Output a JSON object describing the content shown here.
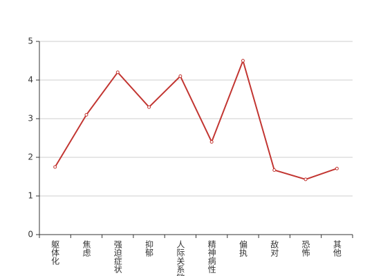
{
  "chart_data": {
    "type": "line",
    "categories": [
      "躯体化",
      "焦虑",
      "强迫症状",
      "抑郁",
      "人际关系敏感",
      "精神病性",
      "偏执",
      "敌对",
      "恐怖",
      "其他"
    ],
    "series": [
      {
        "color": "#c23531",
        "values": [
          1.75,
          3.1,
          4.2,
          3.3,
          4.1,
          2.4,
          4.5,
          1.67,
          1.43,
          1.71
        ]
      }
    ],
    "ylim": [
      0,
      5
    ],
    "yticks": [
      0,
      1,
      2,
      3,
      4,
      5
    ],
    "grid": true
  }
}
